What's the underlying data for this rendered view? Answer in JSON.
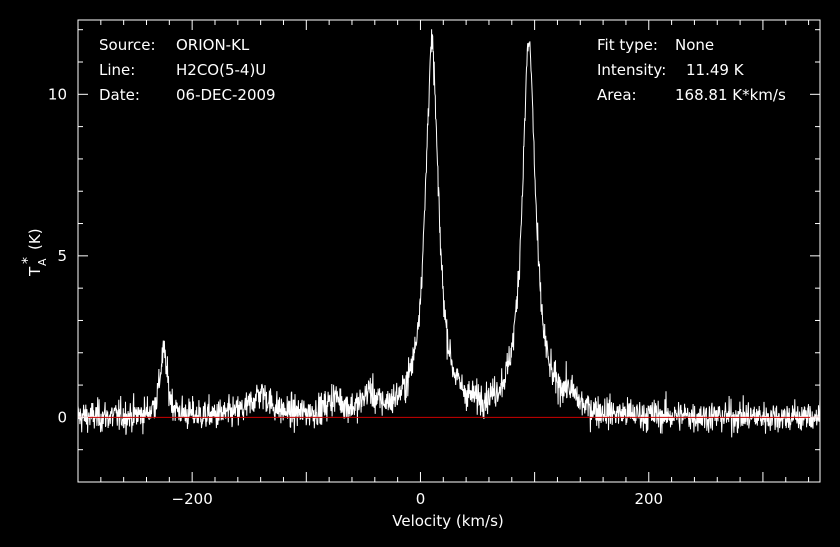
{
  "chart_data": {
    "type": "line",
    "xlabel": "Velocity (km/s)",
    "ylabel": "T",
    "ylabel_sub": "A",
    "ylabel_sup": "*",
    "ylabel_unit": "(K)",
    "xlim": [
      -300,
      350
    ],
    "ylim": [
      -2.0,
      12.3
    ],
    "x_ticks": [
      -200,
      0,
      200
    ],
    "y_ticks": [
      0,
      5,
      10
    ],
    "x_tick_labels": [
      "−200",
      "0",
      "200"
    ],
    "y_tick_labels": [
      "0",
      "5",
      "10"
    ],
    "baseline": {
      "y": 0,
      "color": "#cc0000"
    },
    "spectrum_color": "#ffffff",
    "background_color": "#000000",
    "noise_rms": 0.35,
    "features": [
      {
        "center": 10,
        "peak": 11.4,
        "width": 7
      },
      {
        "center": 95,
        "peak": 11.49,
        "width": 7
      },
      {
        "center": -225,
        "peak": 2.0,
        "width": 4
      },
      {
        "center": -140,
        "peak": 0.7,
        "width": 10
      },
      {
        "center": -75,
        "peak": 0.5,
        "width": 8
      },
      {
        "center": -45,
        "peak": 0.6,
        "width": 6
      },
      {
        "center": 130,
        "peak": 0.45,
        "width": 8
      }
    ],
    "info_left": [
      {
        "key": "Source:",
        "value": "ORION-KL"
      },
      {
        "key": "Line:",
        "value": "H2CO(5-4)U"
      },
      {
        "key": "Date:",
        "value": "06-DEC-2009"
      }
    ],
    "info_right": [
      {
        "key": "Fit type:",
        "value": "None"
      },
      {
        "key": "Intensity:",
        "value": "11.49 K"
      },
      {
        "key": "Area:",
        "value": "168.81 K*km/s"
      }
    ]
  }
}
